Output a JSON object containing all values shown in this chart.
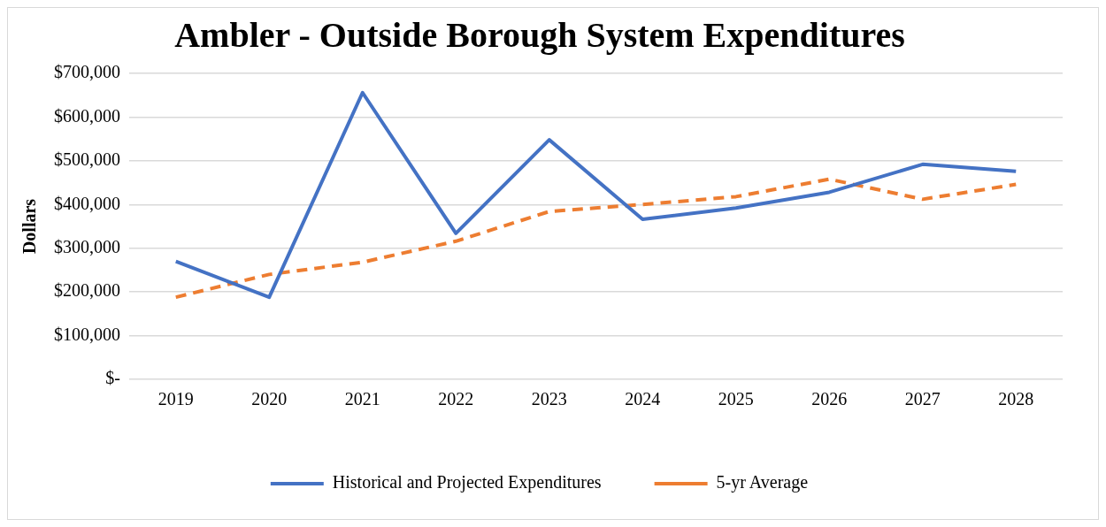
{
  "chart_data": {
    "type": "line",
    "title": "Ambler - Outside Borough System Expenditures",
    "ylabel": "Dollars",
    "categories": [
      "2019",
      "2020",
      "2021",
      "2022",
      "2023",
      "2024",
      "2025",
      "2026",
      "2027",
      "2028"
    ],
    "series": [
      {
        "name": "Historical and Projected Expenditures",
        "color": "#4472c4",
        "line_style": "solid",
        "values": [
          270000,
          188000,
          656000,
          334000,
          548000,
          366000,
          392000,
          428000,
          492000,
          476000
        ]
      },
      {
        "name": "5-yr Average",
        "color": "#ed7d31",
        "line_style": "dashed",
        "values": [
          188000,
          240000,
          268000,
          316000,
          384000,
          400000,
          418000,
          458000,
          412000,
          446000
        ]
      }
    ],
    "ylim": [
      0,
      700000
    ],
    "yticks": [
      {
        "value": 0,
        "label": "$-"
      },
      {
        "value": 100000,
        "label": "$100,000"
      },
      {
        "value": 200000,
        "label": "$200,000"
      },
      {
        "value": 300000,
        "label": "$300,000"
      },
      {
        "value": 400000,
        "label": "$400,000"
      },
      {
        "value": 500000,
        "label": "$500,000"
      },
      {
        "value": 600000,
        "label": "$600,000"
      },
      {
        "value": 700000,
        "label": "$700,000"
      }
    ],
    "grid": "y",
    "legend": "bottom",
    "marker": "none"
  }
}
